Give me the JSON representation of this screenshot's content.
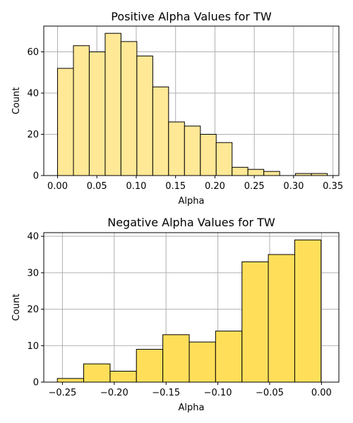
{
  "chart_data": [
    {
      "type": "bar",
      "title": "Positive Alpha Values for TW",
      "xlabel": "Alpha",
      "ylabel": "Count",
      "xlim": [
        -0.0175,
        0.3575
      ],
      "ylim": [
        0,
        72.5
      ],
      "grid": true,
      "color": "#ffe896",
      "xticks": [
        "0.00",
        "0.05",
        "0.10",
        "0.15",
        "0.20",
        "0.25",
        "0.30",
        "0.35"
      ],
      "xtick_values": [
        0.0,
        0.05,
        0.1,
        0.15,
        0.2,
        0.25,
        0.3,
        0.35
      ],
      "yticks": [
        "0",
        "20",
        "40",
        "60"
      ],
      "ytick_values": [
        0,
        20,
        40,
        60
      ],
      "bins": [
        {
          "x0": 0.0,
          "x1": 0.0202,
          "count": 52
        },
        {
          "x0": 0.0202,
          "x1": 0.0403,
          "count": 63
        },
        {
          "x0": 0.0403,
          "x1": 0.0605,
          "count": 60
        },
        {
          "x0": 0.0605,
          "x1": 0.0806,
          "count": 69
        },
        {
          "x0": 0.0806,
          "x1": 0.1008,
          "count": 65
        },
        {
          "x0": 0.1008,
          "x1": 0.121,
          "count": 58
        },
        {
          "x0": 0.121,
          "x1": 0.1411,
          "count": 43
        },
        {
          "x0": 0.1411,
          "x1": 0.1613,
          "count": 26
        },
        {
          "x0": 0.1613,
          "x1": 0.1815,
          "count": 24
        },
        {
          "x0": 0.1815,
          "x1": 0.2016,
          "count": 20
        },
        {
          "x0": 0.2016,
          "x1": 0.2218,
          "count": 16
        },
        {
          "x0": 0.2218,
          "x1": 0.2419,
          "count": 4
        },
        {
          "x0": 0.2419,
          "x1": 0.2621,
          "count": 3
        },
        {
          "x0": 0.2621,
          "x1": 0.2823,
          "count": 2
        },
        {
          "x0": 0.2823,
          "x1": 0.3024,
          "count": 0
        },
        {
          "x0": 0.3024,
          "x1": 0.3226,
          "count": 1
        },
        {
          "x0": 0.3226,
          "x1": 0.3427,
          "count": 1
        }
      ]
    },
    {
      "type": "bar",
      "title": "Negative Alpha Values for TW",
      "xlabel": "Alpha",
      "ylabel": "Count",
      "xlim": [
        -0.268,
        0.0168
      ],
      "ylim": [
        0,
        41
      ],
      "grid": true,
      "color": "#ffdf5a",
      "xticks": [
        "−0.25",
        "−0.20",
        "−0.15",
        "−0.10",
        "−0.05",
        "0.00"
      ],
      "xtick_values": [
        -0.25,
        -0.2,
        -0.15,
        -0.1,
        -0.05,
        0.0
      ],
      "yticks": [
        "0",
        "10",
        "20",
        "30",
        "40"
      ],
      "ytick_values": [
        0,
        10,
        20,
        30,
        40
      ],
      "bins": [
        {
          "x0": -0.2549,
          "x1": -0.2295,
          "count": 1
        },
        {
          "x0": -0.2295,
          "x1": -0.204,
          "count": 5
        },
        {
          "x0": -0.204,
          "x1": -0.1786,
          "count": 3
        },
        {
          "x0": -0.1786,
          "x1": -0.1531,
          "count": 9
        },
        {
          "x0": -0.1531,
          "x1": -0.1276,
          "count": 13
        },
        {
          "x0": -0.1276,
          "x1": -0.1022,
          "count": 11
        },
        {
          "x0": -0.1022,
          "x1": -0.0767,
          "count": 14
        },
        {
          "x0": -0.0767,
          "x1": -0.0513,
          "count": 33
        },
        {
          "x0": -0.0513,
          "x1": -0.0258,
          "count": 35
        },
        {
          "x0": -0.0258,
          "x1": -0.0004,
          "count": 39
        }
      ]
    }
  ]
}
